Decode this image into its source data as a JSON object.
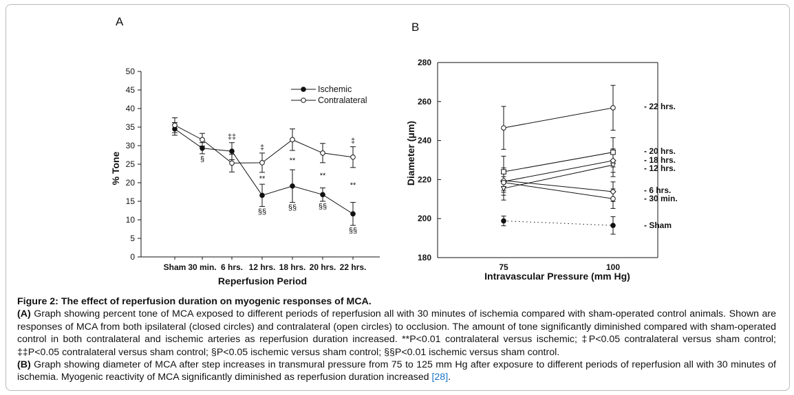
{
  "panel_a_letter": "A",
  "panel_b_letter": "B",
  "caption": {
    "title": "Figure 2: The effect of reperfusion duration on myogenic responses of MCA.",
    "a_label": "(A)",
    "a_text": "Graph showing percent tone of MCA exposed to different periods of reperfusion all with 30 minutes of ischemia compared with sham-operated control animals. Shown are responses of MCA from both ipsilateral (closed circles) and contralateral (open circles) to occlusion. The amount of tone significantly diminished compared with sham-operated control in both contralateral and ischemic arteries as reperfusion duration increased. **P<0.01 contralateral versus ischemic; ‡P<0.05 contralateral versus sham control; ‡‡P<0.05 contralateral versus sham control; §P<0.05 ischemic versus sham control; §§P<0.01 ischemic versus sham control.",
    "b_label": "(B)",
    "b_text": "Graph showing diameter of MCA after step increases in transmural pressure from 75 to 125 mm Hg after exposure to different periods of reperfusion all with 30 minutes of ischemia. Myogenic reactivity of MCA significantly diminished as reperfusion duration increased ",
    "b_ref": "[28]",
    "b_end": "."
  },
  "chart_data": [
    {
      "type": "line",
      "panel": "A",
      "xlabel": "Reperfusion Period",
      "ylabel": "% Tone",
      "categories": [
        "Sham",
        "30 min.",
        "6 hrs.",
        "12 hrs.",
        "18 hrs.",
        "20 hrs.",
        "22 hrs."
      ],
      "ylim": [
        0,
        50
      ],
      "yticks": [
        0,
        5,
        10,
        15,
        20,
        25,
        30,
        35,
        40,
        45,
        50
      ],
      "legend_position": "top-right",
      "series": [
        {
          "name": "Ischemic",
          "marker": "filled-circle",
          "values": [
            34.5,
            29.3,
            28.5,
            16.6,
            19.1,
            16.8,
            11.6
          ],
          "errors": [
            1.7,
            1.5,
            2.3,
            3.0,
            4.4,
            1.8,
            3.1
          ]
        },
        {
          "name": "Contralateral",
          "marker": "open-circle",
          "values": [
            35.5,
            31.6,
            25.3,
            25.4,
            31.6,
            28.0,
            26.9
          ],
          "errors": [
            2.0,
            1.7,
            2.4,
            2.6,
            2.9,
            2.6,
            2.8
          ]
        }
      ],
      "annotations": [
        {
          "category": "30 min.",
          "text": "§",
          "position": "below"
        },
        {
          "category": "6 hrs.",
          "text": "‡‡",
          "position": "above"
        },
        {
          "category": "12 hrs.",
          "text": "‡",
          "position": "above"
        },
        {
          "category": "12 hrs.",
          "text": "**",
          "position": "middle"
        },
        {
          "category": "12 hrs.",
          "text": "§§",
          "position": "below"
        },
        {
          "category": "18 hrs.",
          "text": "**",
          "position": "middle"
        },
        {
          "category": "18 hrs.",
          "text": "§§",
          "position": "below"
        },
        {
          "category": "20 hrs.",
          "text": "**",
          "position": "middle"
        },
        {
          "category": "20 hrs.",
          "text": "§§",
          "position": "below"
        },
        {
          "category": "22 hrs.",
          "text": "‡",
          "position": "above"
        },
        {
          "category": "22 hrs.",
          "text": "**",
          "position": "middle"
        },
        {
          "category": "22 hrs.",
          "text": "§§",
          "position": "below"
        }
      ]
    },
    {
      "type": "line",
      "panel": "B",
      "xlabel": "Intravascular Pressure (mm Hg)",
      "ylabel": "Diameter (μm)",
      "x": [
        75,
        100
      ],
      "ylim": [
        180,
        280
      ],
      "yticks": [
        180,
        200,
        220,
        240,
        260,
        280
      ],
      "series": [
        {
          "name": "- 22 hrs.",
          "marker": "open-circle",
          "values": [
            246.5,
            256.8
          ],
          "errors": [
            11,
            11.5
          ]
        },
        {
          "name": "- 20 hrs.",
          "marker": "open-square",
          "values": [
            224.0,
            234.0
          ],
          "errors": [
            8,
            7.5
          ]
        },
        {
          "name": "- 18 hrs.",
          "marker": "open-diamond",
          "values": [
            219.0,
            229.7
          ],
          "errors": [
            7,
            6
          ]
        },
        {
          "name": "- 12 hrs.",
          "marker": "open-triangle",
          "values": [
            215.5,
            227.5
          ],
          "errors": [
            6,
            6
          ]
        },
        {
          "name": "- 6 hrs.",
          "marker": "open-diamond",
          "values": [
            219.5,
            213.8
          ],
          "errors": [
            5,
            5
          ]
        },
        {
          "name": "- 30 min.",
          "marker": "open-circle",
          "values": [
            218.5,
            210.2
          ],
          "errors": [
            5,
            5
          ]
        },
        {
          "name": "- Sham",
          "marker": "filled-circle",
          "line": "dotted",
          "values": [
            198.8,
            196.5
          ],
          "errors": [
            2.5,
            4.5
          ]
        }
      ]
    }
  ]
}
